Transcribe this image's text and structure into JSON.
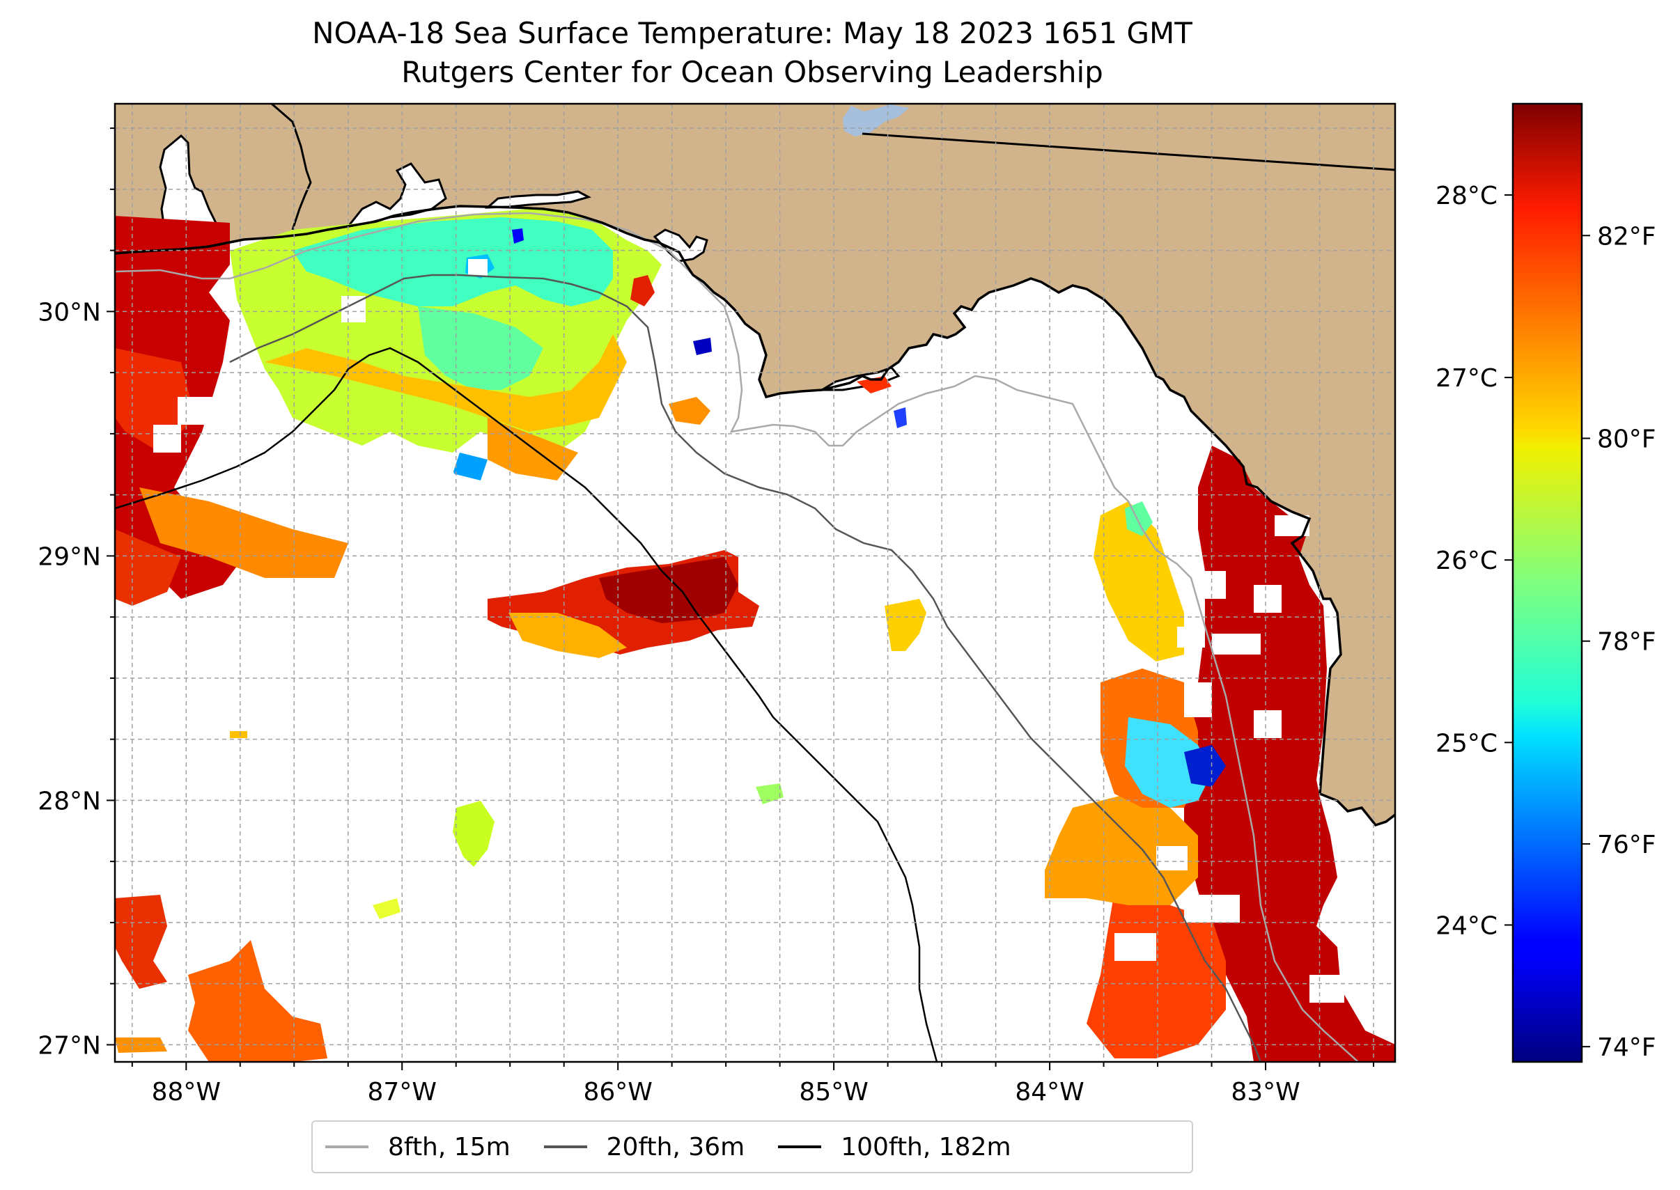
{
  "title": "NOAA-18 Sea Surface Temperature: May 18 2023 1651 GMT",
  "subtitle": "Rutgers Center for Ocean Observing Leadership",
  "map": {
    "lon_range": [
      -88.33,
      -82.4
    ],
    "lat_range": [
      26.93,
      30.85
    ],
    "lon_ticks": [
      {
        "value": -88,
        "label": "88°W"
      },
      {
        "value": -87,
        "label": "87°W"
      },
      {
        "value": -86,
        "label": "86°W"
      },
      {
        "value": -85,
        "label": "85°W"
      },
      {
        "value": -84,
        "label": "84°W"
      },
      {
        "value": -83,
        "label": "83°W"
      }
    ],
    "lat_ticks": [
      {
        "value": 27,
        "label": "27°N"
      },
      {
        "value": 28,
        "label": "28°N"
      },
      {
        "value": 29,
        "label": "29°N"
      },
      {
        "value": 30,
        "label": "30°N"
      }
    ],
    "grid": true,
    "land_color": "#d2b48c",
    "water_color": "#a5bfdd",
    "coastline_color": "#000000"
  },
  "colorbar": {
    "colormap": "jet",
    "range_c": [
      23.25,
      28.5
    ],
    "celsius_ticks": [
      {
        "value": 24,
        "label": "24°C"
      },
      {
        "value": 25,
        "label": "25°C"
      },
      {
        "value": 26,
        "label": "26°C"
      },
      {
        "value": 27,
        "label": "27°C"
      },
      {
        "value": 28,
        "label": "28°C"
      }
    ],
    "fahrenheit_ticks": [
      {
        "value": 74,
        "label": "74°F"
      },
      {
        "value": 76,
        "label": "76°F"
      },
      {
        "value": 78,
        "label": "78°F"
      },
      {
        "value": 80,
        "label": "80°F"
      },
      {
        "value": 82,
        "label": "82°F"
      }
    ]
  },
  "legend": {
    "placement": "bottom-center",
    "items": [
      {
        "label": "8fth, 15m",
        "color": "#a9a9a9"
      },
      {
        "label": "20fth, 36m",
        "color": "#555555"
      },
      {
        "label": "100fth, 182m",
        "color": "#000000"
      }
    ]
  }
}
